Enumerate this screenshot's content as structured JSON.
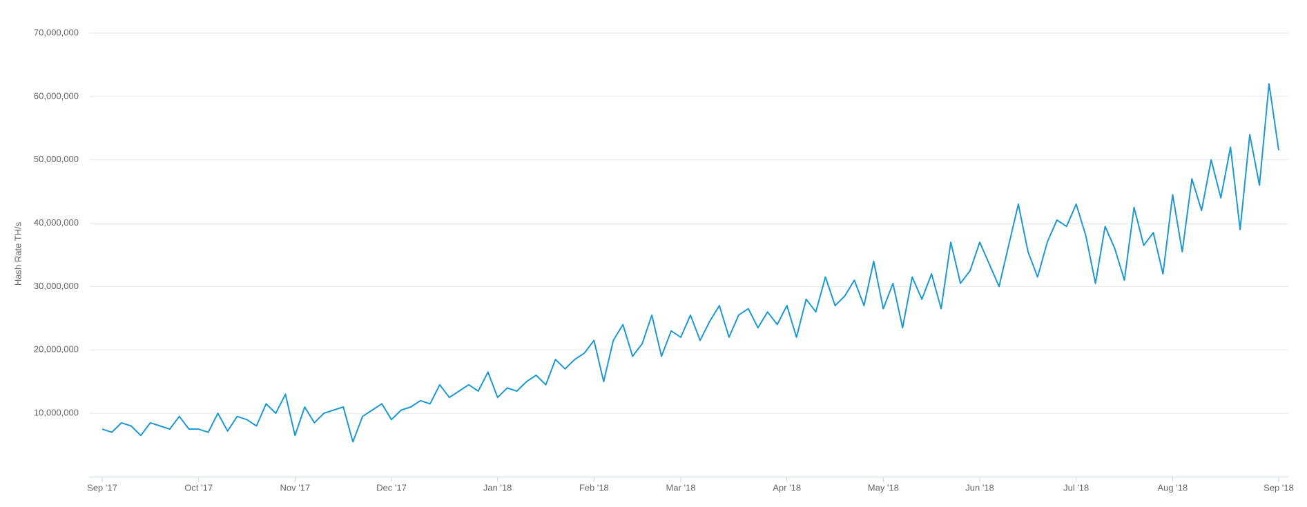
{
  "chart_data": {
    "type": "line",
    "y_label": "Hash Rate TH/s",
    "categories": [
      "Sep '17",
      null,
      null,
      null,
      null,
      null,
      null,
      null,
      null,
      null,
      "Oct '17",
      null,
      null,
      null,
      null,
      null,
      null,
      null,
      null,
      null,
      "Nov '17",
      null,
      null,
      null,
      null,
      null,
      null,
      null,
      null,
      null,
      "Dec '17",
      null,
      null,
      null,
      null,
      null,
      null,
      null,
      null,
      null,
      null,
      "Jan '18",
      null,
      null,
      null,
      null,
      null,
      null,
      null,
      null,
      null,
      "Feb '18",
      null,
      null,
      null,
      null,
      null,
      null,
      null,
      null,
      "Mar '18",
      null,
      null,
      null,
      null,
      null,
      null,
      null,
      null,
      null,
      null,
      "Apr '18",
      null,
      null,
      null,
      null,
      null,
      null,
      null,
      null,
      null,
      "May '18",
      null,
      null,
      null,
      null,
      null,
      null,
      null,
      null,
      null,
      "Jun '18",
      null,
      null,
      null,
      null,
      null,
      null,
      null,
      null,
      null,
      "Jul '18",
      null,
      null,
      null,
      null,
      null,
      null,
      null,
      null,
      null,
      "Aug '18",
      null,
      null,
      null,
      null,
      null,
      null,
      null,
      null,
      null,
      null,
      "Sep '18"
    ],
    "series": [
      {
        "name": "Hash Rate",
        "color": "#1b98d2",
        "values": [
          7500000,
          7000000,
          8500000,
          8000000,
          6500000,
          8500000,
          8000000,
          7500000,
          9500000,
          7500000,
          7500000,
          7000000,
          10000000,
          7200000,
          9500000,
          9000000,
          8000000,
          11500000,
          10000000,
          13000000,
          6500000,
          11000000,
          8500000,
          10000000,
          10500000,
          11000000,
          5500000,
          9500000,
          10500000,
          11500000,
          9000000,
          10500000,
          11000000,
          12000000,
          11500000,
          14500000,
          12500000,
          13500000,
          14500000,
          13500000,
          16500000,
          12500000,
          14000000,
          13500000,
          15000000,
          16000000,
          14500000,
          18500000,
          17000000,
          18500000,
          19500000,
          21500000,
          15000000,
          21500000,
          24000000,
          19000000,
          21000000,
          25500000,
          19000000,
          23000000,
          22000000,
          25500000,
          21500000,
          24500000,
          27000000,
          22000000,
          25500000,
          26500000,
          23500000,
          26000000,
          24000000,
          27000000,
          22000000,
          28000000,
          26000000,
          31500000,
          27000000,
          28500000,
          31000000,
          27000000,
          34000000,
          26500000,
          30500000,
          23500000,
          31500000,
          28000000,
          32000000,
          26500000,
          37000000,
          30500000,
          32500000,
          37000000,
          33500000,
          30000000,
          36500000,
          43000000,
          35500000,
          31500000,
          37000000,
          40500000,
          39500000,
          43000000,
          38000000,
          30500000,
          39500000,
          36000000,
          31000000,
          42500000,
          36500000,
          38500000,
          32000000,
          44500000,
          35500000,
          47000000,
          42000000,
          50000000,
          44000000,
          52000000,
          39000000,
          54000000,
          46000000,
          62000000,
          51500000
        ]
      }
    ],
    "ylim": [
      0,
      70000000
    ],
    "yticks": [
      {
        "value": 10000000,
        "label": "10,000,000"
      },
      {
        "value": 20000000,
        "label": "20,000,000"
      },
      {
        "value": 30000000,
        "label": "30,000,000"
      },
      {
        "value": 40000000,
        "label": "40,000,000"
      },
      {
        "value": 50000000,
        "label": "50,000,000"
      },
      {
        "value": 60000000,
        "label": "60,000,000"
      },
      {
        "value": 70000000,
        "label": "70,000,000"
      }
    ],
    "grid": true
  }
}
